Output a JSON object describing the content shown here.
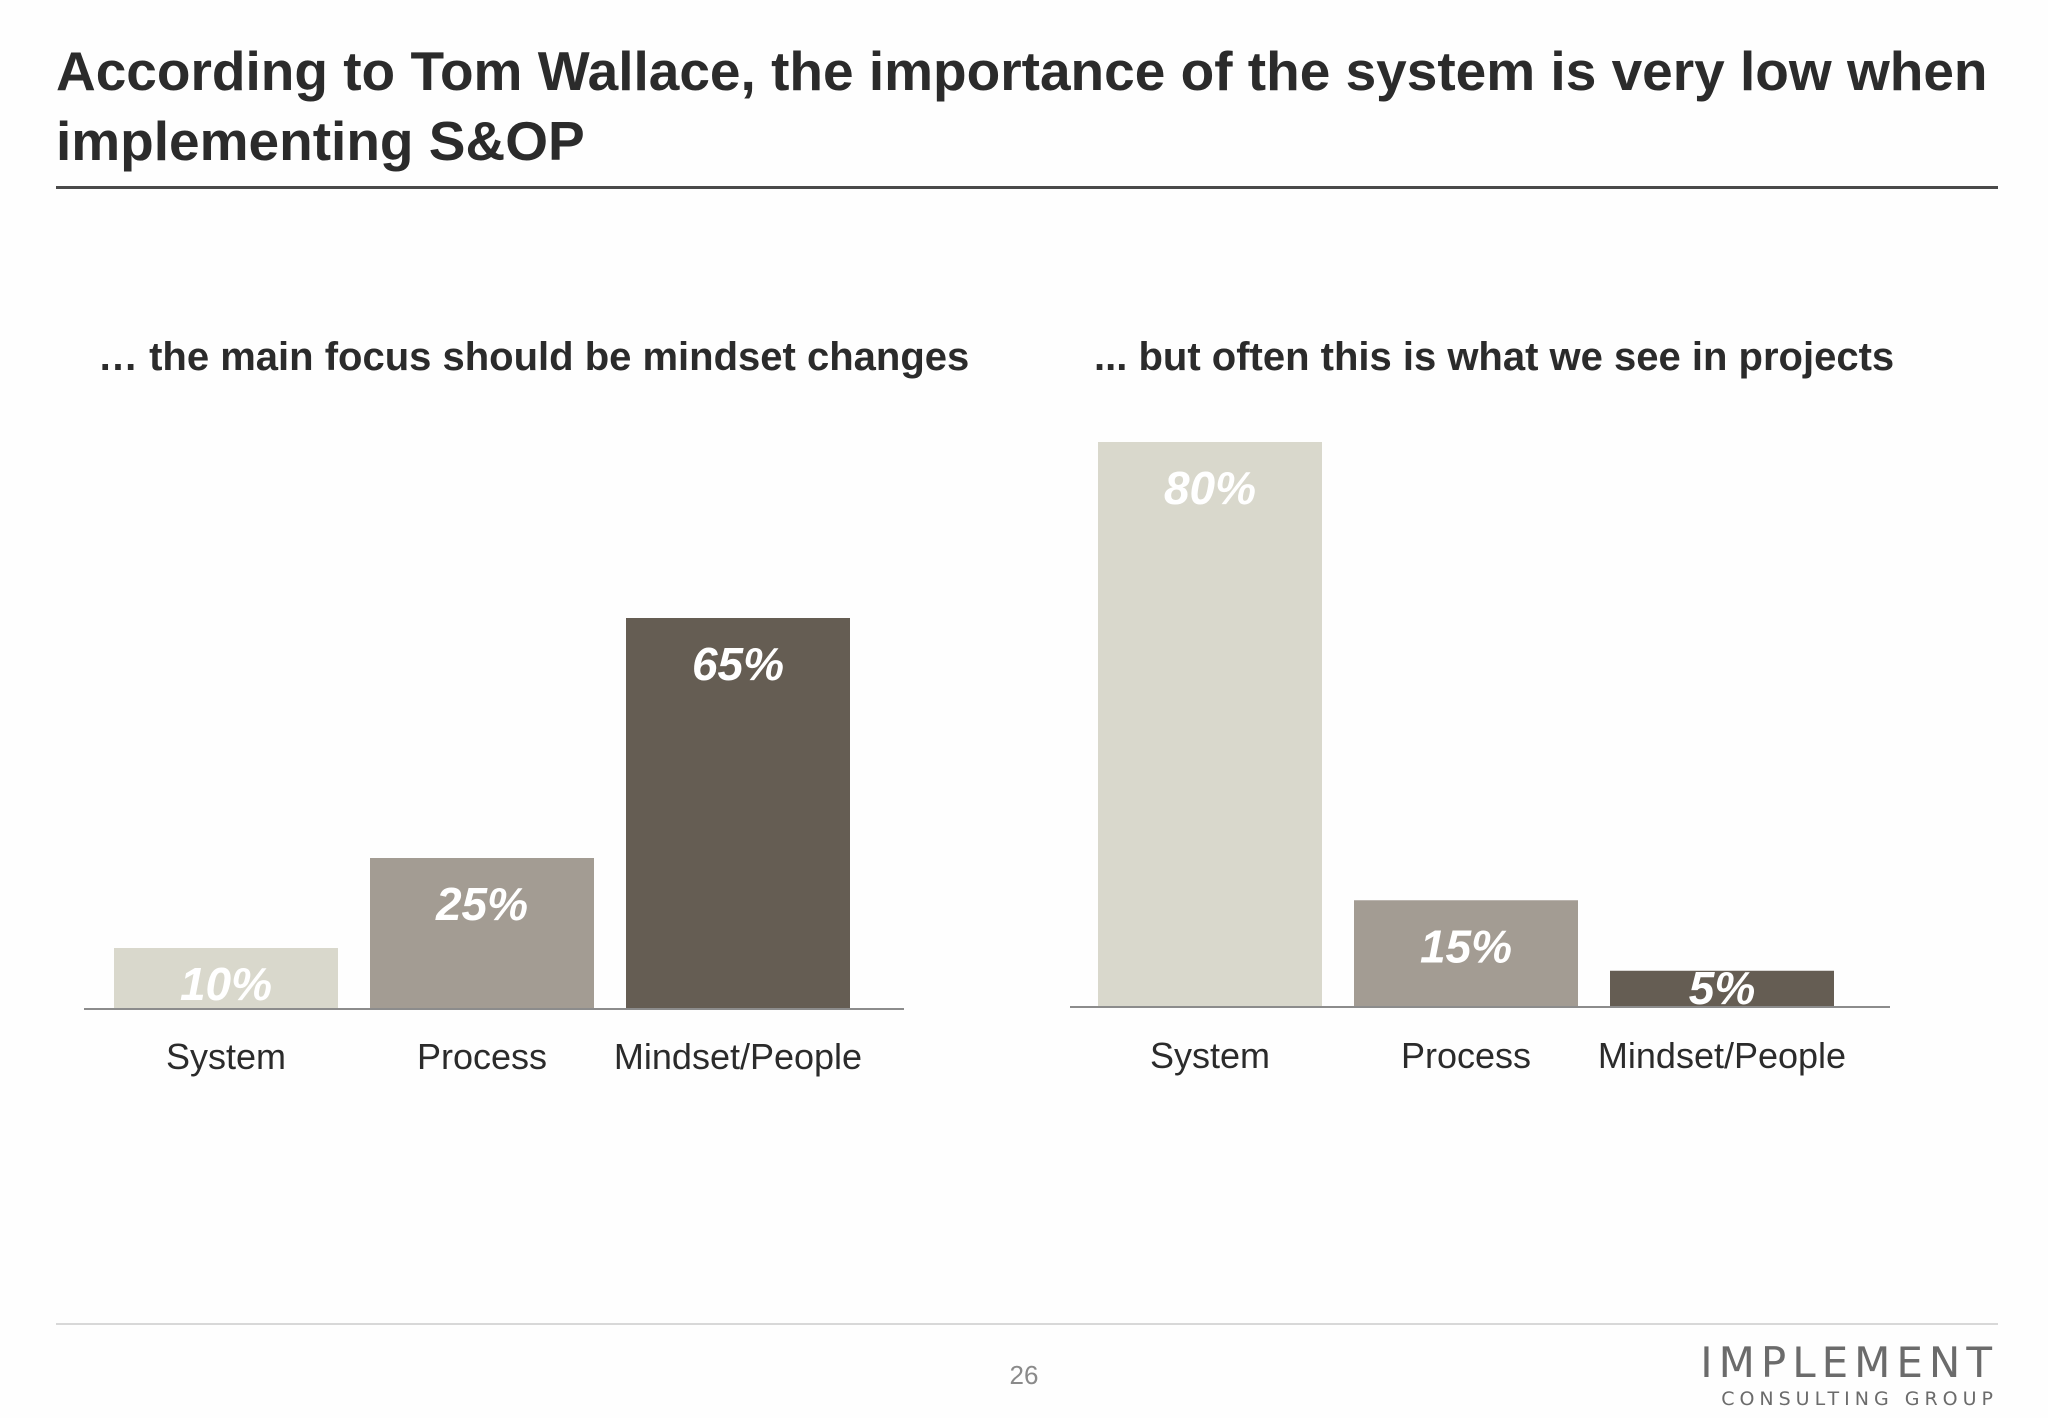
{
  "slide": {
    "title": "According to Tom Wallace, the importance of the system is very low when implementing S&OP",
    "page_number": "26",
    "logo": {
      "main": "IMPLEMENT",
      "sub": "CONSULTING GROUP"
    }
  },
  "colors": {
    "system": "#d9d8cc",
    "process": "#a39c93",
    "mindset_people": "#655d53",
    "value_label": "#ffffff",
    "axis": "#8c8c8c",
    "category_label": "#2b2b2b"
  },
  "chart_data": [
    {
      "type": "bar",
      "title": "… the main focus should be mindset changes",
      "categories": [
        "System",
        "Process",
        "Mindset/People"
      ],
      "values": [
        10,
        25,
        65
      ],
      "value_labels": [
        "10%",
        "25%",
        "65%"
      ],
      "unit": "%",
      "ylim": [
        0,
        80
      ],
      "grid": false,
      "legend": "none"
    },
    {
      "type": "bar",
      "title": "... but often this is what we see in projects",
      "categories": [
        "System",
        "Process",
        "Mindset/People"
      ],
      "values": [
        80,
        15,
        5
      ],
      "value_labels": [
        "80%",
        "15%",
        "5%"
      ],
      "unit": "%",
      "ylim": [
        0,
        80
      ],
      "grid": false,
      "legend": "none"
    }
  ]
}
